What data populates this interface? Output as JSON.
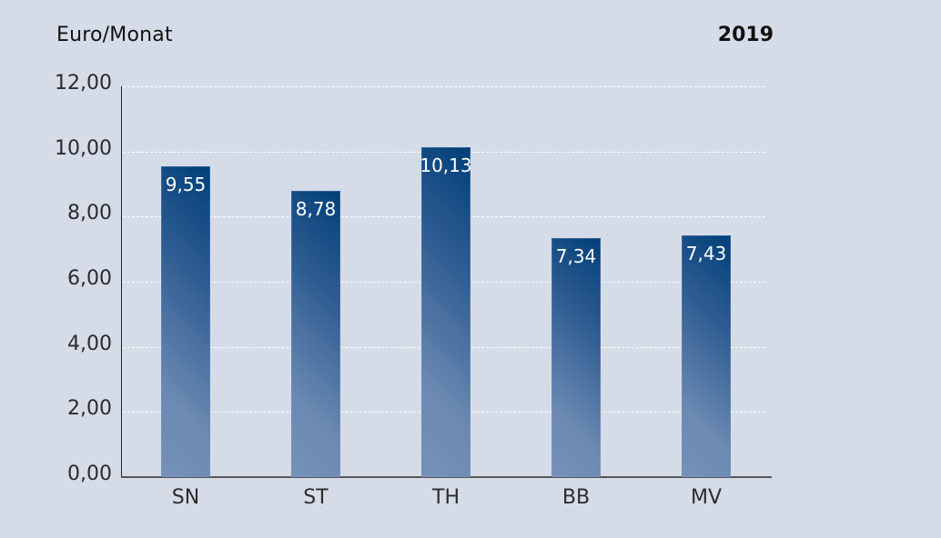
{
  "header": {
    "unit": "Euro/Monat",
    "year": "2019"
  },
  "axis": {
    "y_ticks": [
      "12,00",
      "10,00",
      "8,00",
      "6,00",
      "4,00",
      "2,00",
      "0,00"
    ]
  },
  "bars": [
    {
      "category": "SN",
      "label": "9,55"
    },
    {
      "category": "ST",
      "label": "8,78"
    },
    {
      "category": "TH",
      "label": "10,13"
    },
    {
      "category": "BB",
      "label": "7,34"
    },
    {
      "category": "MV",
      "label": "7,43"
    }
  ],
  "colors": {
    "background": "#d5dce8",
    "bar_dark": "#003f78",
    "bar_light": "#7591b8",
    "gridline": "#ffffff"
  },
  "chart_data": {
    "type": "bar",
    "title": "",
    "xlabel": "",
    "ylabel": "Euro/Monat",
    "annotation": "2019",
    "categories": [
      "SN",
      "ST",
      "TH",
      "BB",
      "MV"
    ],
    "values": [
      9.55,
      8.78,
      10.13,
      7.34,
      7.43
    ],
    "value_labels": [
      "9,55",
      "8,78",
      "10,13",
      "7,34",
      "7,43"
    ],
    "ylim": [
      0,
      12
    ],
    "yticks": [
      0,
      2,
      4,
      6,
      8,
      10,
      12
    ],
    "grid": {
      "y": true,
      "style": "dashed",
      "color": "#ffffff"
    },
    "legend": null
  }
}
